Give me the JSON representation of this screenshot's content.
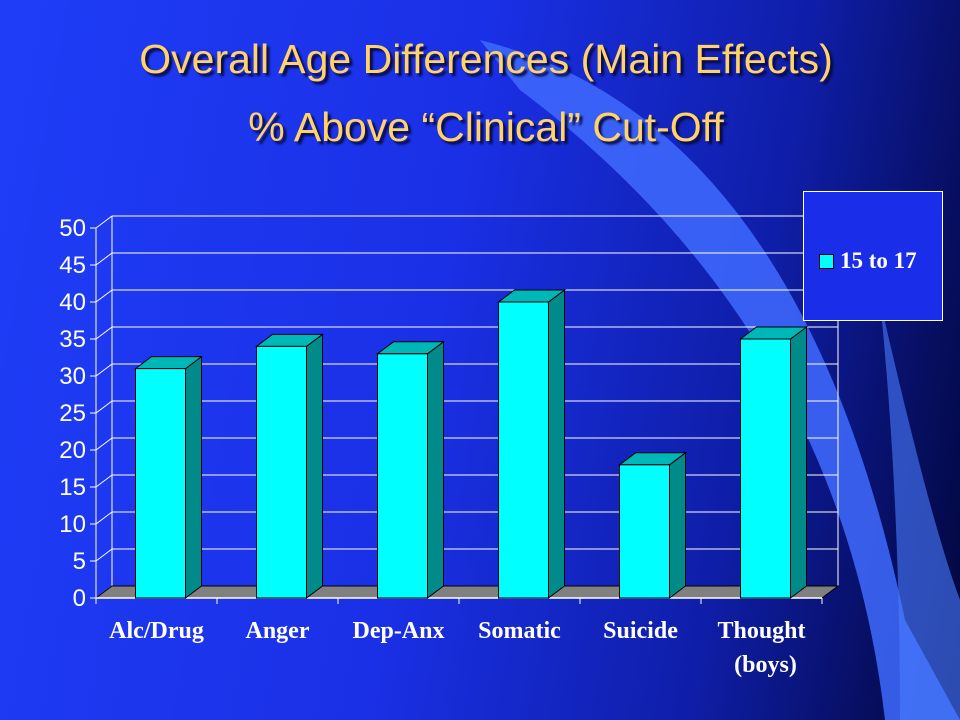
{
  "slide": {
    "title_line1": "Overall Age Differences (Main Effects)",
    "title_line2": "% Above “Clinical” Cut-Off"
  },
  "colors": {
    "bar_front": "#00ffff",
    "bar_side": "#008a8a",
    "bar_top": "#00b7b7",
    "floor": "#808080",
    "title": "#ffd36a"
  },
  "chart_data": {
    "type": "bar",
    "title": "",
    "xlabel": "",
    "ylabel": "",
    "categories": [
      "Alc/Drug",
      "Anger",
      "Dep-Anx",
      "Somatic",
      "Suicide",
      "Thought"
    ],
    "category_sublabels": [
      "",
      "",
      "",
      "",
      "",
      "(boys)"
    ],
    "series": [
      {
        "name": "15 to 17",
        "values": [
          31,
          34,
          33,
          40,
          18,
          35
        ]
      }
    ],
    "ylim": [
      0,
      50
    ],
    "yticks": [
      0,
      5,
      10,
      15,
      20,
      25,
      30,
      35,
      40,
      45,
      50
    ],
    "grid": true,
    "legend_position": "top-right",
    "three_d": true
  }
}
